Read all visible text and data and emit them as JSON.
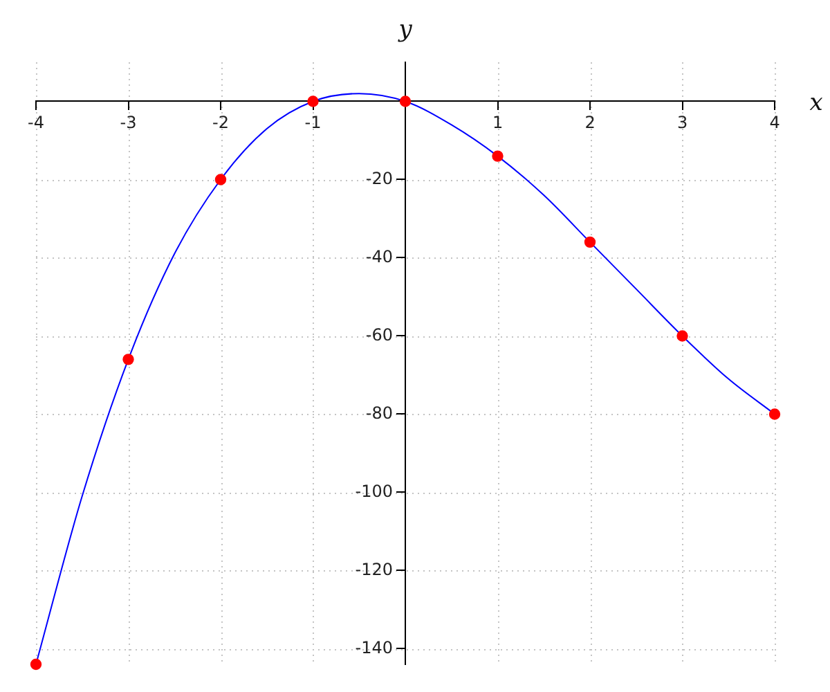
{
  "chart_data": {
    "type": "scatter",
    "xlabel": "x",
    "ylabel": "y",
    "xlim": [
      -4,
      4
    ],
    "ylim": [
      -144,
      10
    ],
    "xticks": [
      -4,
      -3,
      -2,
      -1,
      1,
      2,
      3,
      4
    ],
    "yticks": [
      -140,
      -120,
      -100,
      -80,
      -60,
      -40,
      -20
    ],
    "grid": true,
    "series": [
      {
        "type": "line",
        "color": "#0000ff",
        "marker": "none",
        "x": [
          -4,
          -3.5,
          -3,
          -2.5,
          -2,
          -1.5,
          -1,
          -0.5,
          0,
          0.5,
          1,
          1.5,
          2,
          2.5,
          3,
          3.5,
          4
        ],
        "values": [
          -144,
          -101,
          -66,
          -39,
          -20,
          -7,
          0,
          2,
          0,
          -6,
          -14,
          -24,
          -36,
          -48,
          -60,
          -71,
          -80
        ]
      },
      {
        "color": "#ff0000",
        "marker": "circle",
        "x": [
          -4,
          -3,
          -2,
          -1,
          0,
          1,
          2,
          3,
          4
        ],
        "values": [
          -144,
          -66,
          -20,
          0,
          0,
          -14,
          -36,
          -60,
          -80
        ]
      }
    ]
  }
}
